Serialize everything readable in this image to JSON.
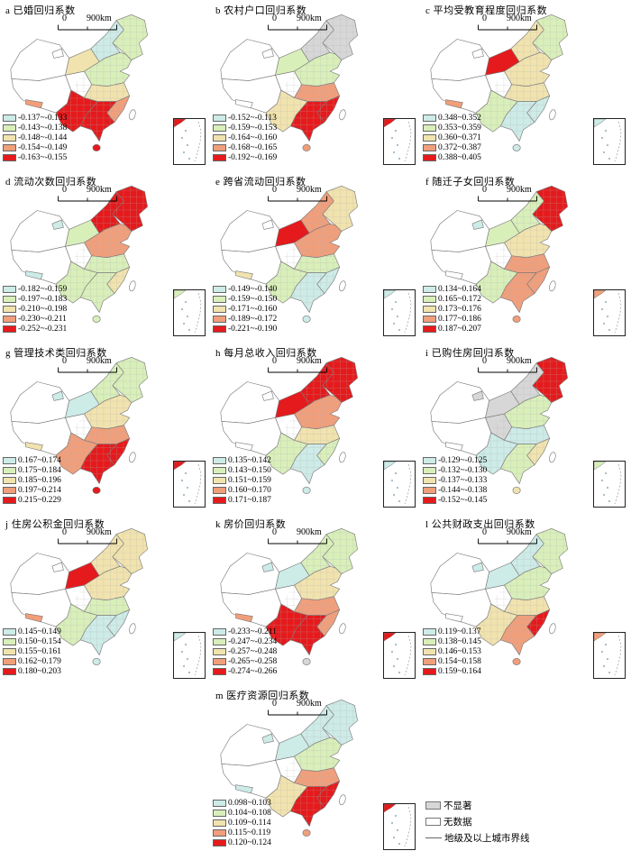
{
  "scale_bar": {
    "zero": "0",
    "label": "900km"
  },
  "class_colors": [
    "#cdebe7",
    "#d9efba",
    "#f1e3ae",
    "#f19e7b",
    "#e51a1c"
  ],
  "special_colors": {
    "white": "#ffffff",
    "gray": "#d7d7d7"
  },
  "shared_legend": {
    "not_significant": "不显著",
    "no_data": "无数据",
    "boundary_line": "地级及以上城市界线"
  },
  "chart_data": [
    {
      "panel": "a",
      "type": "heatmap",
      "subtype": "choropleth_map_of_china",
      "title": "a 已婚回归系数",
      "classes": [
        "-0.137~-0.133",
        "-0.143~-0.138",
        "-0.148~-0.144",
        "-0.154~-0.149",
        "-0.163~-0.155"
      ],
      "zones": {
        "xinjiang": "w",
        "urumqi": "w",
        "gansu": "3",
        "qinghai": "w",
        "tibet": "w",
        "tibetPatch": "4",
        "innerMongolia": "1",
        "northeast": "2",
        "northChina": "2",
        "central": "3",
        "eastCoast": "4",
        "south": "5",
        "southwest": "5",
        "hainan": "5",
        "taiwan": "w"
      }
    },
    {
      "panel": "b",
      "type": "heatmap",
      "subtype": "choropleth_map_of_china",
      "title": "b 农村户口回归系数",
      "classes": [
        "-0.152~-0.113",
        "-0.159~-0.153",
        "-0.164~-0.160",
        "-0.168~-0.165",
        "-0.192~-0.169"
      ],
      "zones": {
        "xinjiang": "w",
        "urumqi": "w",
        "gansu": "2",
        "qinghai": "w",
        "tibet": "w",
        "tibetPatch": "w",
        "innerMongolia": "g",
        "northeast": "g",
        "northChina": "2",
        "central": "4",
        "eastCoast": "5",
        "south": "5",
        "southwest": "3",
        "hainan": "4",
        "taiwan": "w"
      }
    },
    {
      "panel": "c",
      "type": "heatmap",
      "subtype": "choropleth_map_of_china",
      "title": "c 平均受教育程度回归系数",
      "classes": [
        "0.348~0.352",
        "0.353~0.359",
        "0.360~0.371",
        "0.372~0.387",
        "0.388~0.405"
      ],
      "zones": {
        "xinjiang": "w",
        "urumqi": "w",
        "gansu": "5",
        "qinghai": "w",
        "tibet": "w",
        "tibetPatch": "4",
        "innerMongolia": "3",
        "northeast": "2",
        "northChina": "3",
        "central": "3",
        "eastCoast": "1",
        "south": "1",
        "southwest": "2",
        "hainan": "1",
        "taiwan": "w"
      }
    },
    {
      "panel": "d",
      "type": "heatmap",
      "subtype": "choropleth_map_of_china",
      "title": "d 流动次数回归系数",
      "classes": [
        "-0.182~-0.159",
        "-0.197~-0.183",
        "-0.210~-0.198",
        "-0.230~-0.211",
        "-0.252~-0.231"
      ],
      "zones": {
        "xinjiang": "w",
        "urumqi": "1",
        "gansu": "2",
        "qinghai": "w",
        "tibet": "w",
        "tibetPatch": "1",
        "innerMongolia": "5",
        "northeast": "5",
        "northChina": "4",
        "central": "2",
        "eastCoast": "3",
        "south": "2",
        "southwest": "2",
        "hainan": "2",
        "taiwan": "w"
      }
    },
    {
      "panel": "e",
      "type": "heatmap",
      "subtype": "choropleth_map_of_china",
      "title": "e 跨省流动回归系数",
      "classes": [
        "-0.149~-0.140",
        "-0.159~-0.150",
        "-0.171~-0.160",
        "-0.189~-0.172",
        "-0.221~-0.190"
      ],
      "zones": {
        "xinjiang": "w",
        "urumqi": "w",
        "gansu": "5",
        "qinghai": "w",
        "tibet": "w",
        "tibetPatch": "3",
        "innerMongolia": "4",
        "northeast": "3",
        "northChina": "4",
        "central": "2",
        "eastCoast": "1",
        "south": "1",
        "southwest": "2",
        "hainan": "1",
        "taiwan": "w"
      }
    },
    {
      "panel": "f",
      "type": "heatmap",
      "subtype": "choropleth_map_of_china",
      "title": "f 随迁子女回归系数",
      "classes": [
        "0.134~0.164",
        "0.165~0.172",
        "0.173~0.176",
        "0.177~0.186",
        "0.187~0.207"
      ],
      "zones": {
        "xinjiang": "w",
        "urumqi": "1",
        "gansu": "2",
        "qinghai": "w",
        "tibet": "w",
        "tibetPatch": "w",
        "innerMongolia": "2",
        "northeast": "5",
        "northChina": "3",
        "central": "4",
        "eastCoast": "4",
        "south": "4",
        "southwest": "2",
        "hainan": "4",
        "taiwan": "w"
      }
    },
    {
      "panel": "g",
      "type": "heatmap",
      "subtype": "choropleth_map_of_china",
      "title": "g 管理技术类回归系数",
      "classes": [
        "0.167~0.174",
        "0.175~0.184",
        "0.185~0.196",
        "0.197~0.214",
        "0.215~0.229"
      ],
      "zones": {
        "xinjiang": "w",
        "urumqi": "1",
        "gansu": "1",
        "qinghai": "w",
        "tibet": "w",
        "tibetPatch": "3",
        "innerMongolia": "2",
        "northeast": "2",
        "northChina": "3",
        "central": "4",
        "eastCoast": "5",
        "south": "5",
        "southwest": "4",
        "hainan": "5",
        "taiwan": "w"
      }
    },
    {
      "panel": "h",
      "type": "heatmap",
      "subtype": "choropleth_map_of_china",
      "title": "h 每月总收入回归系数",
      "classes": [
        "0.135~0.142",
        "0.143~0.150",
        "0.151~0.159",
        "0.160~0.170",
        "0.171~0.187"
      ],
      "zones": {
        "xinjiang": "w",
        "urumqi": "w",
        "gansu": "5",
        "qinghai": "w",
        "tibet": "w",
        "tibetPatch": "w",
        "innerMongolia": "5",
        "northeast": "5",
        "northChina": "4",
        "central": "3",
        "eastCoast": "2",
        "south": "1",
        "southwest": "2",
        "hainan": "1",
        "taiwan": "w"
      }
    },
    {
      "panel": "i",
      "type": "heatmap",
      "subtype": "choropleth_map_of_china",
      "title": "i 已购住房回归系数",
      "classes": [
        "-0.129~-0.125",
        "-0.132~-0.130",
        "-0.137~-0.133",
        "-0.144~-0.138",
        "-0.152~-0.145"
      ],
      "zones": {
        "xinjiang": "w",
        "urumqi": "g",
        "gansu": "g",
        "qinghai": "g",
        "tibet": "w",
        "tibetPatch": "w",
        "innerMongolia": "g",
        "northeast": "5",
        "northChina": "2",
        "central": "1",
        "eastCoast": "3",
        "south": "2",
        "southwest": "1",
        "hainan": "3",
        "taiwan": "w"
      }
    },
    {
      "panel": "j",
      "type": "heatmap",
      "subtype": "choropleth_map_of_china",
      "title": "j 住房公积金回归系数",
      "classes": [
        "0.145~0.149",
        "0.150~0.154",
        "0.155~0.161",
        "0.162~0.179",
        "0.180~0.203"
      ],
      "zones": {
        "xinjiang": "w",
        "urumqi": "w",
        "gansu": "5",
        "qinghai": "w",
        "tibet": "w",
        "tibetPatch": "4",
        "innerMongolia": "3",
        "northeast": "3",
        "northChina": "3",
        "central": "2",
        "eastCoast": "1",
        "south": "1",
        "southwest": "2",
        "hainan": "1",
        "taiwan": "w"
      }
    },
    {
      "panel": "k",
      "type": "heatmap",
      "subtype": "choropleth_map_of_china",
      "title": "k 房价回归系数",
      "classes": [
        "-0.233~-0.211",
        "-0.247~-0.234",
        "-0.257~-0.248",
        "-0.265~-0.258",
        "-0.274~-0.266"
      ],
      "zones": {
        "xinjiang": "w",
        "urumqi": "1",
        "gansu": "1",
        "qinghai": "w",
        "tibet": "w",
        "tibetPatch": "4",
        "innerMongolia": "2",
        "northeast": "2",
        "northChina": "3",
        "central": "4",
        "eastCoast": "4",
        "south": "5",
        "southwest": "5",
        "hainan": "g",
        "taiwan": "w"
      }
    },
    {
      "panel": "l",
      "type": "heatmap",
      "subtype": "choropleth_map_of_china",
      "title": "l 公共财政支出回归系数",
      "classes": [
        "0.119~0.137",
        "0.138~0.145",
        "0.146~0.153",
        "0.154~0.158",
        "0.159~0.164"
      ],
      "zones": {
        "xinjiang": "w",
        "urumqi": "1",
        "gansu": "1",
        "qinghai": "w",
        "tibet": "w",
        "tibetPatch": "w",
        "innerMongolia": "1",
        "northeast": "2",
        "northChina": "2",
        "central": "3",
        "eastCoast": "5",
        "south": "4",
        "southwest": "3",
        "hainan": "4",
        "taiwan": "w"
      }
    },
    {
      "panel": "m",
      "type": "heatmap",
      "subtype": "choropleth_map_of_china",
      "title": "m 医疗资源回归系数",
      "classes": [
        "0.098~0.103",
        "0.104~0.108",
        "0.109~0.114",
        "0.115~0.119",
        "0.120~0.124"
      ],
      "zones": {
        "xinjiang": "w",
        "urumqi": "1",
        "gansu": "1",
        "qinghai": "w",
        "tibet": "w",
        "tibetPatch": "1",
        "innerMongolia": "1",
        "northeast": "1",
        "northChina": "2",
        "central": "4",
        "eastCoast": "5",
        "south": "5",
        "southwest": "3",
        "hainan": "4",
        "taiwan": "w"
      }
    }
  ]
}
